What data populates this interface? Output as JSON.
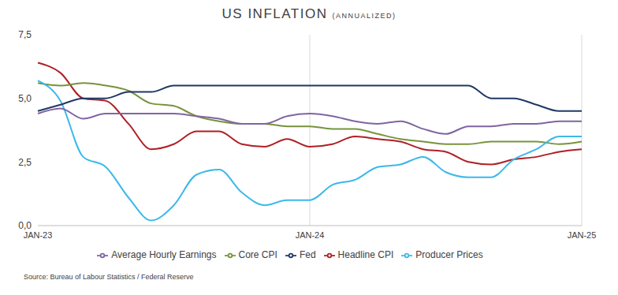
{
  "chart_data": {
    "type": "line",
    "title": "US INFLATION",
    "subtitle": "(ANNUALIZED)",
    "source": "Source: Bureau of Labour Statistics / Federal Reserve",
    "categories": [
      "JAN-23",
      null,
      null,
      null,
      null,
      null,
      null,
      null,
      null,
      null,
      null,
      null,
      "JAN-24",
      null,
      null,
      null,
      null,
      null,
      null,
      null,
      null,
      null,
      null,
      null,
      "JAN-25"
    ],
    "ylim": [
      0,
      7.5
    ],
    "yticks": [
      {
        "value": 0,
        "label": "0,0"
      },
      {
        "value": 2.5,
        "label": "2,5"
      },
      {
        "value": 5,
        "label": "5,0"
      },
      {
        "value": 7.5,
        "label": "7,5"
      }
    ],
    "grid": true,
    "legend": "bottom",
    "series": [
      {
        "name": "Headline CPI",
        "color": "#b01f24",
        "values": [
          6.4,
          6.0,
          5.0,
          4.9,
          4.0,
          3.0,
          3.2,
          3.7,
          3.7,
          3.2,
          3.1,
          3.4,
          3.1,
          3.2,
          3.5,
          3.4,
          3.3,
          3.0,
          2.9,
          2.5,
          2.4,
          2.6,
          2.7,
          2.9,
          3.0
        ]
      },
      {
        "name": "Core CPI",
        "color": "#77933c",
        "values": [
          5.6,
          5.5,
          5.6,
          5.5,
          5.3,
          4.8,
          4.7,
          4.3,
          4.1,
          4.0,
          4.0,
          3.9,
          3.9,
          3.8,
          3.8,
          3.6,
          3.4,
          3.3,
          3.2,
          3.2,
          3.3,
          3.3,
          3.3,
          3.2,
          3.3
        ]
      },
      {
        "name": "Producer Prices",
        "color": "#3cb8ea",
        "values": [
          5.7,
          4.9,
          2.7,
          2.3,
          1.1,
          0.2,
          0.8,
          2.0,
          2.2,
          1.3,
          0.8,
          1.0,
          1.0,
          1.6,
          1.8,
          2.3,
          2.4,
          2.7,
          2.1,
          1.9,
          1.9,
          2.6,
          3.0,
          3.5,
          3.5
        ]
      },
      {
        "name": "Average Hourly Earnings",
        "color": "#8064a2",
        "values": [
          4.4,
          4.6,
          4.2,
          4.4,
          4.4,
          4.4,
          4.4,
          4.3,
          4.2,
          4.0,
          4.0,
          4.3,
          4.4,
          4.3,
          4.1,
          4.0,
          4.1,
          3.8,
          3.6,
          3.9,
          3.9,
          4.0,
          4.0,
          4.1,
          4.1
        ]
      },
      {
        "name": "Fed",
        "color": "#1f3864",
        "values": [
          4.5,
          4.75,
          5.0,
          5.0,
          5.25,
          5.25,
          5.5,
          5.5,
          5.5,
          5.5,
          5.5,
          5.5,
          5.5,
          5.5,
          5.5,
          5.5,
          5.5,
          5.5,
          5.5,
          5.5,
          5.0,
          5.0,
          4.75,
          4.5,
          4.5
        ]
      }
    ]
  }
}
